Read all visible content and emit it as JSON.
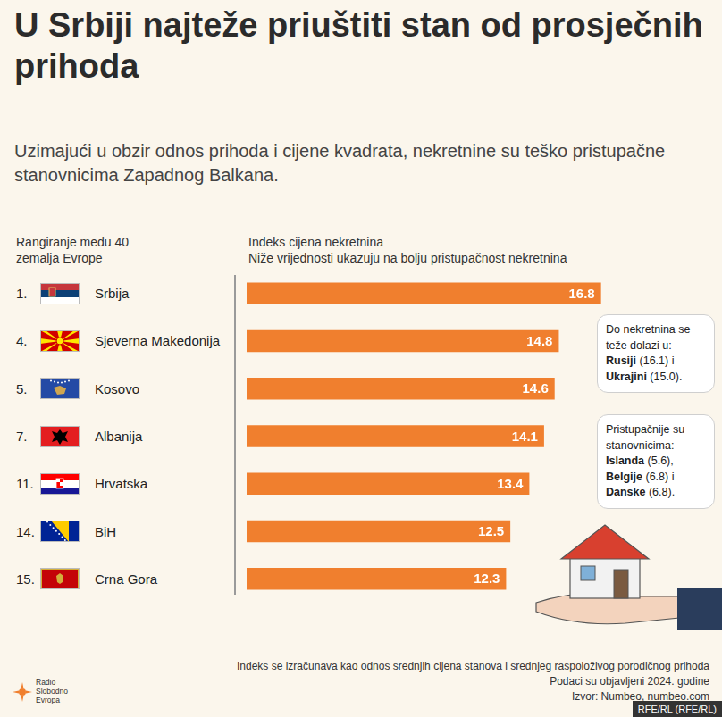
{
  "chart_data": {
    "type": "bar",
    "orientation": "horizontal",
    "title": "U Srbiji najteže priuštiti stan od prosječnih prihoda",
    "subtitle": "Uzimajući u obzir odnos prihoda i cijene kvadrata, nekretnine su teško pristupačne stanovnicima Zapadnog Balkana.",
    "rank_header": "Rangiranje među 40 zemalja Evrope",
    "axis_title": "Indeks cijena nekretnina",
    "axis_subtitle": "Niže vrijednosti ukazuju na bolju pristupačnost nekretnina",
    "ranks": [
      "1.",
      "4.",
      "5.",
      "7.",
      "11.",
      "14.",
      "15."
    ],
    "categories": [
      "Srbija",
      "Sjeverna Makedonija",
      "Kosovo",
      "Albanija",
      "Hrvatska",
      "BiH",
      "Crna Gora"
    ],
    "values": [
      16.8,
      14.8,
      14.6,
      14.1,
      13.4,
      12.5,
      12.3
    ],
    "color": "#f07f2e",
    "xlim": [
      0,
      18
    ],
    "data_labels": true,
    "tick_labels": false,
    "grid": false,
    "annotations": [
      {
        "text": "Do nekretnina se teže dolazi u:",
        "items": [
          {
            "name": "Rusiji",
            "text": "(16.1) i"
          },
          {
            "name": "Ukrajini",
            "text": "(15.0)."
          }
        ]
      },
      {
        "text": "Pristupačnije su stanovnicima:",
        "items": [
          {
            "name": "Islanda",
            "text": "(5.6),"
          },
          {
            "name": "Belgije",
            "text": "(6.8) i"
          },
          {
            "name": "Danske",
            "text": "(6.8)."
          }
        ]
      }
    ],
    "notes": [
      "Indeks se izračunava kao odnos srednjih cijena stanova i srednjeg raspoloživog porodičnog prihoda",
      "Podaci su objavljeni 2024. godine",
      "Izvor: Numbeo, numbeo.com"
    ],
    "logo": "Radio Slobodno Evropa",
    "credit": "RFE/RL (RFE/RL)"
  }
}
